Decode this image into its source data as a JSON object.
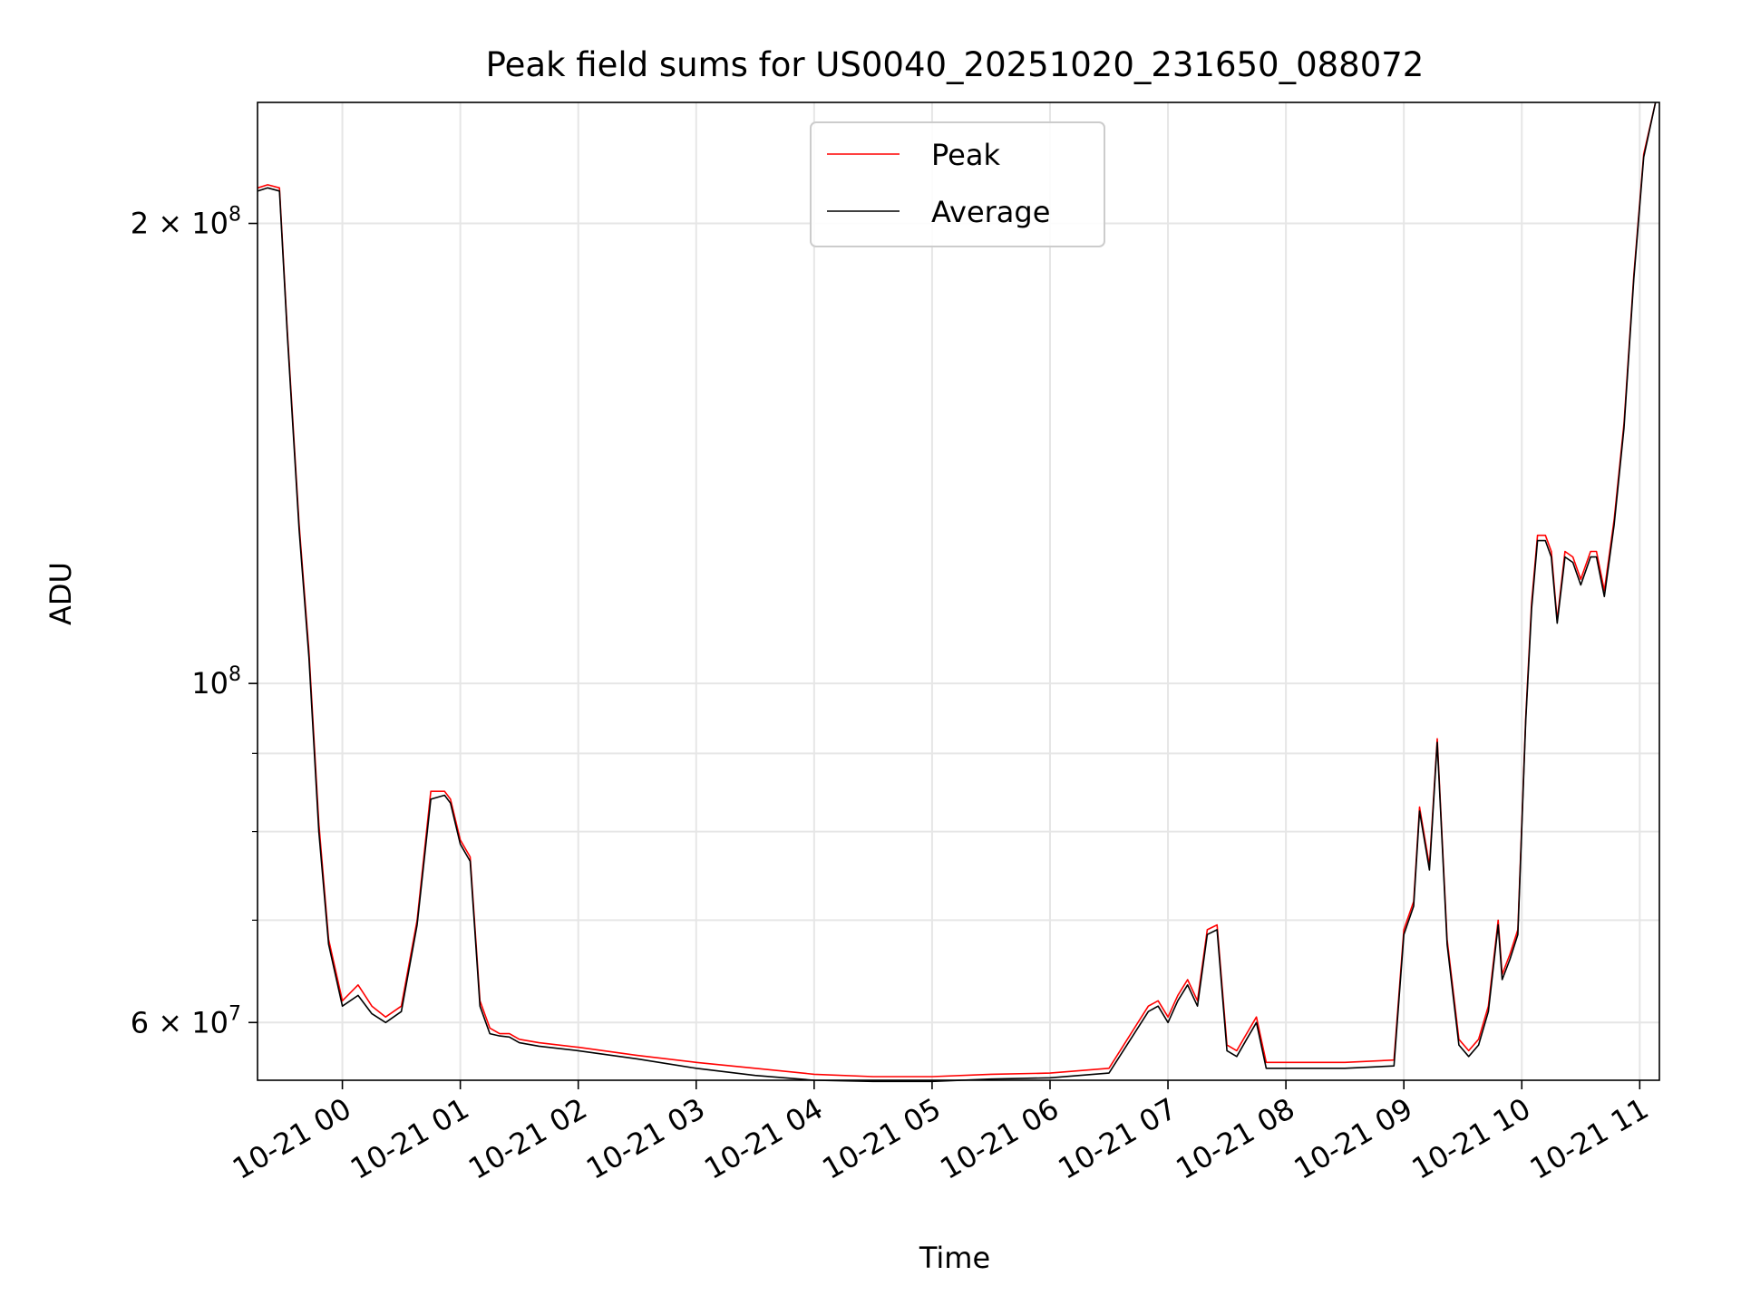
{
  "colors": {
    "peak": "#ff0000",
    "average": "#000000",
    "grid": "#e6e6e6",
    "axis": "#000000",
    "legend_border": "#cccccc"
  },
  "chart_data": {
    "type": "line",
    "title": "Peak field sums for US0040_20251020_231650_088072",
    "xlabel": "Time",
    "ylabel": "ADU",
    "yscale": "log",
    "grid": true,
    "legend_position": "top-center",
    "xlim": [
      "2025-10-20T23:16:50",
      "2025-10-21T11:10:00"
    ],
    "ylim": [
      55000000,
      240000000
    ],
    "x_ticks": [
      {
        "value": "2025-10-21T00:00",
        "label": "10-21 00"
      },
      {
        "value": "2025-10-21T01:00",
        "label": "10-21 01"
      },
      {
        "value": "2025-10-21T02:00",
        "label": "10-21 02"
      },
      {
        "value": "2025-10-21T03:00",
        "label": "10-21 03"
      },
      {
        "value": "2025-10-21T04:00",
        "label": "10-21 04"
      },
      {
        "value": "2025-10-21T05:00",
        "label": "10-21 05"
      },
      {
        "value": "2025-10-21T06:00",
        "label": "10-21 06"
      },
      {
        "value": "2025-10-21T07:00",
        "label": "10-21 07"
      },
      {
        "value": "2025-10-21T08:00",
        "label": "10-21 08"
      },
      {
        "value": "2025-10-21T09:00",
        "label": "10-21 09"
      },
      {
        "value": "2025-10-21T10:00",
        "label": "10-21 10"
      },
      {
        "value": "2025-10-21T11:00",
        "label": "10-21 11"
      }
    ],
    "y_major_ticks": [
      {
        "value": 60000000,
        "mantissa": "6",
        "base": "10",
        "exp": "7"
      },
      {
        "value": 100000000,
        "mantissa": "",
        "base": "10",
        "exp": "8"
      },
      {
        "value": 200000000,
        "mantissa": "2",
        "base": "10",
        "exp": "8"
      }
    ],
    "y_minor_ticks": [
      70000000,
      80000000,
      90000000
    ],
    "series": [
      {
        "name": "Peak",
        "color": "#ff0000",
        "x": [
          "2025-10-20T23:17",
          "2025-10-20T23:22",
          "2025-10-20T23:28",
          "2025-10-20T23:32",
          "2025-10-20T23:38",
          "2025-10-20T23:43",
          "2025-10-20T23:48",
          "2025-10-20T23:53",
          "2025-10-21T00:00",
          "2025-10-21T00:08",
          "2025-10-21T00:15",
          "2025-10-21T00:22",
          "2025-10-21T00:30",
          "2025-10-21T00:38",
          "2025-10-21T00:45",
          "2025-10-21T00:52",
          "2025-10-21T00:55",
          "2025-10-21T01:00",
          "2025-10-21T01:05",
          "2025-10-21T01:10",
          "2025-10-21T01:15",
          "2025-10-21T01:20",
          "2025-10-21T01:25",
          "2025-10-21T01:30",
          "2025-10-21T01:40",
          "2025-10-21T02:00",
          "2025-10-21T02:30",
          "2025-10-21T03:00",
          "2025-10-21T03:30",
          "2025-10-21T04:00",
          "2025-10-21T04:30",
          "2025-10-21T05:00",
          "2025-10-21T05:30",
          "2025-10-21T06:00",
          "2025-10-21T06:30",
          "2025-10-21T06:50",
          "2025-10-21T06:55",
          "2025-10-21T07:00",
          "2025-10-21T07:05",
          "2025-10-21T07:10",
          "2025-10-21T07:15",
          "2025-10-21T07:20",
          "2025-10-21T07:25",
          "2025-10-21T07:30",
          "2025-10-21T07:35",
          "2025-10-21T07:40",
          "2025-10-21T07:45",
          "2025-10-21T07:50",
          "2025-10-21T07:55",
          "2025-10-21T08:00",
          "2025-10-21T08:30",
          "2025-10-21T08:55",
          "2025-10-21T09:00",
          "2025-10-21T09:05",
          "2025-10-21T09:08",
          "2025-10-21T09:13",
          "2025-10-21T09:17",
          "2025-10-21T09:22",
          "2025-10-21T09:28",
          "2025-10-21T09:33",
          "2025-10-21T09:38",
          "2025-10-21T09:43",
          "2025-10-21T09:48",
          "2025-10-21T09:50",
          "2025-10-21T09:54",
          "2025-10-21T09:58",
          "2025-10-21T10:02",
          "2025-10-21T10:05",
          "2025-10-21T10:08",
          "2025-10-21T10:12",
          "2025-10-21T10:15",
          "2025-10-21T10:18",
          "2025-10-21T10:22",
          "2025-10-21T10:26",
          "2025-10-21T10:30",
          "2025-10-21T10:35",
          "2025-10-21T10:38",
          "2025-10-21T10:42",
          "2025-10-21T10:47",
          "2025-10-21T10:52",
          "2025-10-21T10:57",
          "2025-10-21T11:02",
          "2025-10-21T11:08"
        ],
        "values": [
          211000000,
          212000000,
          211000000,
          170000000,
          127000000,
          105000000,
          81000000,
          68000000,
          62000000,
          63500000,
          61500000,
          60500000,
          61500000,
          70000000,
          85000000,
          85000000,
          84000000,
          79000000,
          77000000,
          62000000,
          59500000,
          59000000,
          59000000,
          58500000,
          58200000,
          57800000,
          57100000,
          56500000,
          56000000,
          55500000,
          55300000,
          55300000,
          55500000,
          55600000,
          56000000,
          61500000,
          62000000,
          60500000,
          62500000,
          64000000,
          62000000,
          69000000,
          69500000,
          58000000,
          57500000,
          59000000,
          60500000,
          56500000,
          56500000,
          56500000,
          56500000,
          56700000,
          69000000,
          72000000,
          83000000,
          76000000,
          92000000,
          68000000,
          58500000,
          57500000,
          58500000,
          61500000,
          70000000,
          64500000,
          66500000,
          69000000,
          95000000,
          113000000,
          125000000,
          125000000,
          122000000,
          110000000,
          122000000,
          121000000,
          117000000,
          122000000,
          122000000,
          115000000,
          128000000,
          148000000,
          185000000,
          222000000,
          240000000
        ]
      },
      {
        "name": "Average",
        "color": "#000000",
        "x": [
          "2025-10-20T23:17",
          "2025-10-20T23:22",
          "2025-10-20T23:28",
          "2025-10-20T23:32",
          "2025-10-20T23:38",
          "2025-10-20T23:43",
          "2025-10-20T23:48",
          "2025-10-20T23:53",
          "2025-10-21T00:00",
          "2025-10-21T00:08",
          "2025-10-21T00:15",
          "2025-10-21T00:22",
          "2025-10-21T00:30",
          "2025-10-21T00:38",
          "2025-10-21T00:45",
          "2025-10-21T00:52",
          "2025-10-21T00:55",
          "2025-10-21T01:00",
          "2025-10-21T01:05",
          "2025-10-21T01:10",
          "2025-10-21T01:15",
          "2025-10-21T01:20",
          "2025-10-21T01:25",
          "2025-10-21T01:30",
          "2025-10-21T01:40",
          "2025-10-21T02:00",
          "2025-10-21T02:30",
          "2025-10-21T03:00",
          "2025-10-21T03:30",
          "2025-10-21T04:00",
          "2025-10-21T04:30",
          "2025-10-21T05:00",
          "2025-10-21T05:30",
          "2025-10-21T06:00",
          "2025-10-21T06:30",
          "2025-10-21T06:50",
          "2025-10-21T06:55",
          "2025-10-21T07:00",
          "2025-10-21T07:05",
          "2025-10-21T07:10",
          "2025-10-21T07:15",
          "2025-10-21T07:20",
          "2025-10-21T07:25",
          "2025-10-21T07:30",
          "2025-10-21T07:35",
          "2025-10-21T07:40",
          "2025-10-21T07:45",
          "2025-10-21T07:50",
          "2025-10-21T07:55",
          "2025-10-21T08:00",
          "2025-10-21T08:30",
          "2025-10-21T08:55",
          "2025-10-21T09:00",
          "2025-10-21T09:05",
          "2025-10-21T09:08",
          "2025-10-21T09:13",
          "2025-10-21T09:17",
          "2025-10-21T09:22",
          "2025-10-21T09:28",
          "2025-10-21T09:33",
          "2025-10-21T09:38",
          "2025-10-21T09:43",
          "2025-10-21T09:48",
          "2025-10-21T09:50",
          "2025-10-21T09:54",
          "2025-10-21T09:58",
          "2025-10-21T10:02",
          "2025-10-21T10:05",
          "2025-10-21T10:08",
          "2025-10-21T10:12",
          "2025-10-21T10:15",
          "2025-10-21T10:18",
          "2025-10-21T10:22",
          "2025-10-21T10:26",
          "2025-10-21T10:30",
          "2025-10-21T10:35",
          "2025-10-21T10:38",
          "2025-10-21T10:42",
          "2025-10-21T10:47",
          "2025-10-21T10:52",
          "2025-10-21T10:57",
          "2025-10-21T11:02",
          "2025-10-21T11:08"
        ],
        "values": [
          210000000,
          211000000,
          210000000,
          169000000,
          126000000,
          104000000,
          80000000,
          67500000,
          61500000,
          62500000,
          60800000,
          60000000,
          61000000,
          69500000,
          84000000,
          84500000,
          83500000,
          78500000,
          76500000,
          61500000,
          59000000,
          58800000,
          58700000,
          58200000,
          57900000,
          57500000,
          56800000,
          56000000,
          55400000,
          55000000,
          54900000,
          54900000,
          55100000,
          55200000,
          55600000,
          61000000,
          61500000,
          60000000,
          62000000,
          63500000,
          61500000,
          68500000,
          69000000,
          57500000,
          57000000,
          58500000,
          60000000,
          56000000,
          56000000,
          56000000,
          56000000,
          56200000,
          68500000,
          71500000,
          82500000,
          75500000,
          91500000,
          67500000,
          58000000,
          57000000,
          58000000,
          61000000,
          69500000,
          64000000,
          66000000,
          68500000,
          94500000,
          112000000,
          124000000,
          124000000,
          121000000,
          109500000,
          121000000,
          120000000,
          116000000,
          121000000,
          121000000,
          114000000,
          127000000,
          147000000,
          184000000,
          221000000,
          240000000
        ]
      }
    ]
  }
}
